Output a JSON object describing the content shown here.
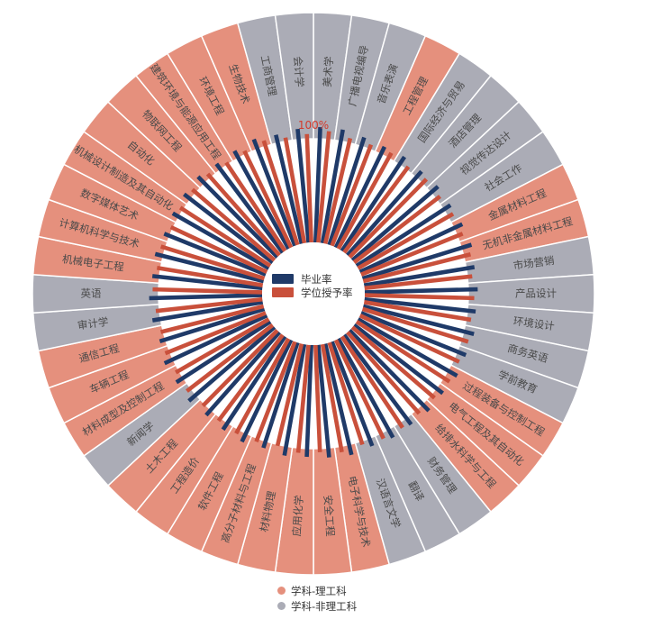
{
  "chart_data": {
    "type": "bar",
    "layout": "radial",
    "title": "",
    "center_legend": [
      "毕业率",
      "学位授予率"
    ],
    "category_legend": [
      "学科-理工科",
      "学科-非理工科"
    ],
    "annotation": "100%",
    "ylim": [
      0,
      100
    ],
    "colors": {
      "graduation": "#1f3a68",
      "degree": "#c9503b",
      "stem": "#e5907d",
      "non_stem": "#abacb6",
      "annotation": "#d33a2c"
    },
    "categories": [
      "美术学",
      "广播电视编导",
      "音乐表演",
      "工程管理",
      "国际经济与贸易",
      "酒店管理",
      "视觉传达设计",
      "社会工作",
      "金属材料工程",
      "无机非金属材料工程",
      "市场营销",
      "产品设计",
      "环境设计",
      "商务英语",
      "学前教育",
      "过程装备与控制工程",
      "电气工程及其自动化",
      "给排水科学与工程",
      "财务管理",
      "翻译",
      "汉语言文学",
      "电子科学与技术",
      "安全工程",
      "应用化学",
      "材料物理",
      "高分子材料与工程",
      "软件工程",
      "工程造价",
      "土木工程",
      "新闻学",
      "材料成型及控制工程",
      "车辆工程",
      "通信工程",
      "审计学",
      "英语",
      "机械电子工程",
      "计算机科学与技术",
      "数字媒体艺术",
      "机械设计制造及其自动化",
      "自动化",
      "物联网工程",
      "建筑环境与能源应用工程",
      "环境工程",
      "生物技术",
      "工商管理",
      "会计学"
    ],
    "discipline": [
      "非理工科",
      "非理工科",
      "非理工科",
      "理工科",
      "非理工科",
      "非理工科",
      "非理工科",
      "非理工科",
      "理工科",
      "理工科",
      "非理工科",
      "非理工科",
      "非理工科",
      "非理工科",
      "非理工科",
      "理工科",
      "理工科",
      "理工科",
      "非理工科",
      "非理工科",
      "非理工科",
      "理工科",
      "理工科",
      "理工科",
      "理工科",
      "理工科",
      "理工科",
      "理工科",
      "理工科",
      "非理工科",
      "理工科",
      "理工科",
      "理工科",
      "非理工科",
      "非理工科",
      "理工科",
      "理工科",
      "理工科",
      "理工科",
      "理工科",
      "理工科",
      "理工科",
      "理工科",
      "理工科",
      "非理工科",
      "非理工科"
    ],
    "series": [
      {
        "name": "毕业率",
        "values": [
          100,
          100,
          98,
          97,
          98,
          97,
          98,
          97,
          98,
          99,
          97,
          98,
          97,
          99,
          98,
          99,
          97,
          98,
          97,
          98,
          97,
          99,
          98,
          97,
          98,
          96,
          98,
          97,
          96,
          98,
          97,
          98,
          95,
          97,
          98,
          96,
          97,
          95,
          96,
          97,
          98,
          96,
          97,
          99,
          97,
          99
        ]
      },
      {
        "name": "学位授予率",
        "values": [
          97,
          94,
          94,
          95,
          93,
          95,
          94,
          95,
          95,
          96,
          94,
          95,
          94,
          96,
          95,
          96,
          94,
          94,
          95,
          95,
          93,
          95,
          93,
          94,
          91,
          93,
          94,
          93,
          92,
          94,
          93,
          94,
          92,
          93,
          95,
          93,
          94,
          92,
          93,
          94,
          94,
          92,
          93,
          95,
          93,
          94
        ]
      }
    ]
  }
}
